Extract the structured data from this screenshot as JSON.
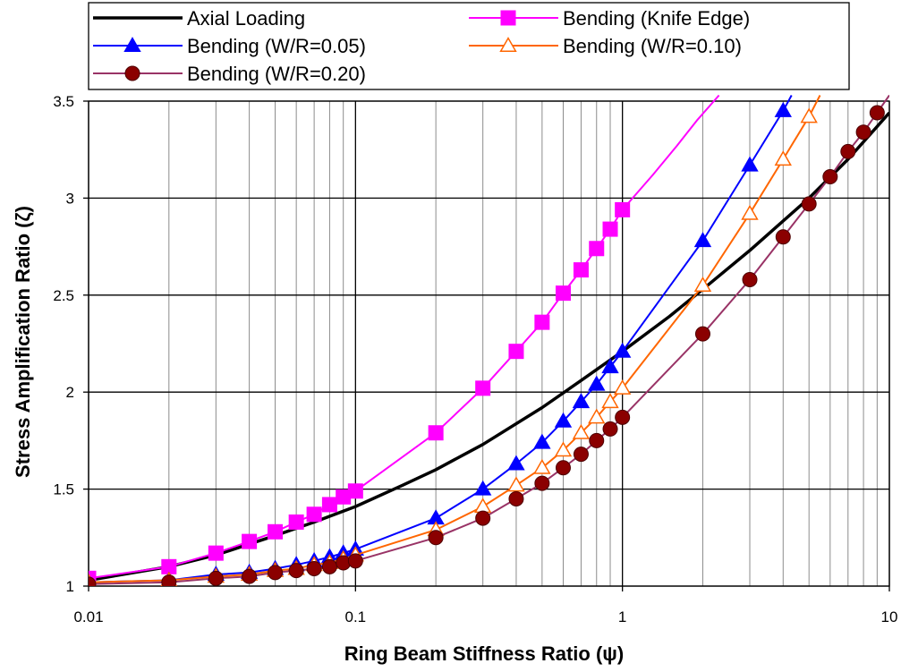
{
  "chart_data": {
    "type": "line",
    "x_scale": "log",
    "xlim": [
      0.01,
      10
    ],
    "ylim": [
      1,
      3.5
    ],
    "xlabel": "Ring Beam Stiffness Ratio (ψ)",
    "ylabel": "Stress Amplification Ratio (ζ)",
    "x_ticks": [
      "0.01",
      "0.1",
      "1",
      "10"
    ],
    "y_ticks": [
      "1",
      "1.5",
      "2",
      "2.5",
      "3",
      "3.5"
    ],
    "grid": true,
    "legend_position": "top",
    "series": [
      {
        "name": "Axial Loading",
        "color": "#000000",
        "marker": "none",
        "line_width": 3.5,
        "x": [
          0.01,
          0.02,
          0.03,
          0.05,
          0.07,
          0.1,
          0.15,
          0.2,
          0.3,
          0.5,
          0.7,
          1,
          1.5,
          2,
          3,
          5,
          7,
          10
        ],
        "y": [
          1.03,
          1.1,
          1.16,
          1.26,
          1.33,
          1.41,
          1.52,
          1.6,
          1.73,
          1.92,
          2.06,
          2.21,
          2.39,
          2.53,
          2.73,
          3.0,
          3.2,
          3.44
        ]
      },
      {
        "name": "Bending (Knife Edge)",
        "color": "#ff00ff",
        "marker": "square-filled",
        "x": [
          0.01,
          0.02,
          0.03,
          0.04,
          0.05,
          0.06,
          0.07,
          0.08,
          0.09,
          0.1,
          0.2,
          0.3,
          0.4,
          0.5,
          0.6,
          0.7,
          0.8,
          0.9,
          1
        ],
        "y": [
          1.04,
          1.1,
          1.17,
          1.23,
          1.28,
          1.33,
          1.37,
          1.42,
          1.46,
          1.49,
          1.79,
          2.02,
          2.21,
          2.36,
          2.51,
          2.63,
          2.74,
          2.84,
          2.94
        ],
        "line_extension": {
          "x": [
            1.3,
            1.6,
            1.9,
            2.3
          ],
          "y": [
            3.12,
            3.27,
            3.4,
            3.53
          ]
        }
      },
      {
        "name": "Bending (W/R=0.05)",
        "color": "#0000ff",
        "marker": "triangle-filled",
        "x": [
          0.01,
          0.02,
          0.03,
          0.04,
          0.05,
          0.06,
          0.07,
          0.08,
          0.09,
          0.1,
          0.2,
          0.3,
          0.4,
          0.5,
          0.6,
          0.7,
          0.8,
          0.9,
          1,
          2,
          3,
          4
        ],
        "y": [
          1.02,
          1.03,
          1.06,
          1.07,
          1.09,
          1.11,
          1.13,
          1.15,
          1.17,
          1.19,
          1.35,
          1.5,
          1.63,
          1.74,
          1.85,
          1.95,
          2.04,
          2.13,
          2.21,
          2.78,
          3.17,
          3.45
        ],
        "line_extension": {
          "x": [
            4.3
          ],
          "y": [
            3.53
          ]
        }
      },
      {
        "name": "Bending (W/R=0.10)",
        "color": "#ff6600",
        "marker": "triangle-open",
        "x": [
          0.01,
          0.02,
          0.03,
          0.04,
          0.05,
          0.06,
          0.07,
          0.08,
          0.09,
          0.1,
          0.2,
          0.3,
          0.4,
          0.5,
          0.6,
          0.7,
          0.8,
          0.9,
          1,
          2,
          3,
          4,
          5
        ],
        "y": [
          1.02,
          1.03,
          1.05,
          1.06,
          1.08,
          1.09,
          1.11,
          1.12,
          1.14,
          1.16,
          1.29,
          1.41,
          1.52,
          1.61,
          1.7,
          1.79,
          1.87,
          1.95,
          2.02,
          2.55,
          2.92,
          3.2,
          3.42
        ],
        "line_extension": {
          "x": [
            5.5
          ],
          "y": [
            3.53
          ]
        }
      },
      {
        "name": "Bending (W/R=0.20)",
        "color": "#993366",
        "marker": "circle-filled",
        "marker_fill": "#8b0000",
        "x": [
          0.01,
          0.02,
          0.03,
          0.04,
          0.05,
          0.06,
          0.07,
          0.08,
          0.09,
          0.1,
          0.2,
          0.3,
          0.4,
          0.5,
          0.6,
          0.7,
          0.8,
          0.9,
          1,
          2,
          3,
          4,
          5,
          6,
          7,
          8,
          9
        ],
        "y": [
          1.01,
          1.02,
          1.04,
          1.05,
          1.07,
          1.08,
          1.09,
          1.1,
          1.12,
          1.13,
          1.25,
          1.35,
          1.45,
          1.53,
          1.61,
          1.68,
          1.75,
          1.81,
          1.87,
          2.3,
          2.58,
          2.8,
          2.97,
          3.11,
          3.24,
          3.34,
          3.44
        ],
        "line_extension": {
          "x": [
            10
          ],
          "y": [
            3.53
          ]
        }
      }
    ]
  }
}
